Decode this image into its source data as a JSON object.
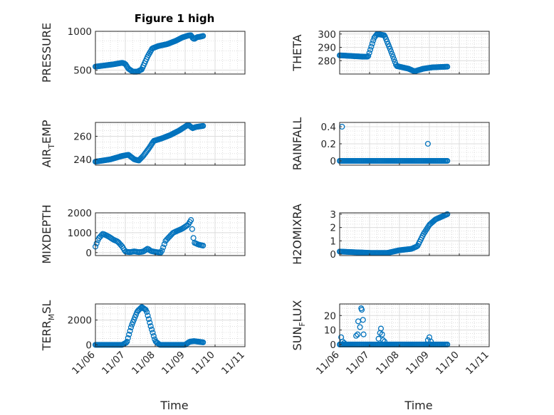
{
  "figure": {
    "title": "Figure 1 high",
    "xlabel": "Time",
    "x_tick_labels": [
      "11/06",
      "11/07",
      "11/08",
      "11/09",
      "11/10",
      "11/11"
    ],
    "marker_color": "#0072bd"
  },
  "chart_data": [
    {
      "type": "scatter",
      "ylabel": "PRESSURE",
      "xlim": [
        0,
        5
      ],
      "ylim": [
        450,
        1000
      ],
      "yticks": [
        500,
        1000
      ],
      "x_tick_labels": [
        "11/06",
        "11/07",
        "11/08",
        "11/09",
        "11/10",
        "11/11"
      ],
      "keypoints": [
        [
          0,
          545
        ],
        [
          0.3,
          560
        ],
        [
          0.6,
          575
        ],
        [
          0.9,
          595
        ],
        [
          1.0,
          580
        ],
        [
          1.1,
          520
        ],
        [
          1.25,
          480
        ],
        [
          1.4,
          480
        ],
        [
          1.55,
          510
        ],
        [
          1.75,
          680
        ],
        [
          1.9,
          780
        ],
        [
          2.1,
          810
        ],
        [
          2.4,
          835
        ],
        [
          2.7,
          880
        ],
        [
          2.9,
          920
        ],
        [
          3.1,
          945
        ],
        [
          3.2,
          950
        ],
        [
          3.25,
          915
        ],
        [
          3.3,
          900
        ],
        [
          3.4,
          925
        ],
        [
          3.5,
          930
        ],
        [
          3.6,
          940
        ]
      ],
      "n_points": 115,
      "grid": true
    },
    {
      "type": "scatter",
      "ylabel": "THETA",
      "xlim": [
        0,
        5
      ],
      "ylim": [
        270,
        302
      ],
      "yticks": [
        280,
        290,
        300
      ],
      "x_tick_labels": [
        "11/06",
        "11/07",
        "11/08",
        "11/09",
        "11/10",
        "11/11"
      ],
      "keypoints": [
        [
          0,
          284
        ],
        [
          0.4,
          283.5
        ],
        [
          0.8,
          283
        ],
        [
          0.95,
          283
        ],
        [
          1.05,
          290
        ],
        [
          1.15,
          297
        ],
        [
          1.25,
          300
        ],
        [
          1.5,
          299
        ],
        [
          1.7,
          288
        ],
        [
          1.9,
          276
        ],
        [
          2.1,
          275
        ],
        [
          2.3,
          274
        ],
        [
          2.5,
          272
        ],
        [
          2.8,
          274
        ],
        [
          3.1,
          275
        ],
        [
          3.6,
          275.5
        ]
      ],
      "n_points": 110,
      "grid": true
    },
    {
      "type": "scatter",
      "ylabel": "AIR",
      "ylabel_sub": "T",
      "ylabel_tail": "EMP",
      "xlim": [
        0,
        5
      ],
      "ylim": [
        235,
        272
      ],
      "yticks": [
        240,
        260
      ],
      "x_tick_labels": [
        "11/06",
        "11/07",
        "11/08",
        "11/09",
        "11/10",
        "11/11"
      ],
      "keypoints": [
        [
          0,
          238
        ],
        [
          0.5,
          240
        ],
        [
          0.9,
          243
        ],
        [
          1.1,
          244
        ],
        [
          1.3,
          240
        ],
        [
          1.45,
          239
        ],
        [
          1.6,
          243
        ],
        [
          1.8,
          250
        ],
        [
          1.95,
          256
        ],
        [
          2.2,
          258
        ],
        [
          2.5,
          261
        ],
        [
          2.8,
          265
        ],
        [
          3.1,
          270
        ],
        [
          3.25,
          267
        ],
        [
          3.35,
          268
        ],
        [
          3.6,
          269
        ]
      ],
      "n_points": 115,
      "grid": true
    },
    {
      "type": "scatter",
      "ylabel": "RAINFALL",
      "xlim": [
        0,
        5
      ],
      "ylim": [
        -0.05,
        0.45
      ],
      "yticks": [
        0,
        0.2,
        0.4
      ],
      "x_tick_labels": [
        "11/06",
        "11/07",
        "11/08",
        "11/09",
        "11/10",
        "11/11"
      ],
      "keypoints": [
        [
          0,
          0
        ],
        [
          3.6,
          0
        ]
      ],
      "n_points": 100,
      "extra_points": [
        [
          0.08,
          0.4
        ],
        [
          2.95,
          0.2
        ]
      ],
      "grid": true
    },
    {
      "type": "scatter",
      "ylabel": "MIXDEPTH",
      "xlim": [
        0,
        5
      ],
      "ylim": [
        -150,
        2000
      ],
      "yticks": [
        0,
        1000,
        2000
      ],
      "x_tick_labels": [
        "11/06",
        "11/07",
        "11/08",
        "11/09",
        "11/10",
        "11/11"
      ],
      "keypoints": [
        [
          0,
          300
        ],
        [
          0.1,
          700
        ],
        [
          0.25,
          950
        ],
        [
          0.45,
          800
        ],
        [
          0.6,
          650
        ],
        [
          0.75,
          550
        ],
        [
          0.9,
          300
        ],
        [
          1.0,
          50
        ],
        [
          1.15,
          20
        ],
        [
          1.3,
          60
        ],
        [
          1.45,
          20
        ],
        [
          1.6,
          50
        ],
        [
          1.75,
          200
        ],
        [
          1.85,
          80
        ],
        [
          2.0,
          30
        ],
        [
          2.2,
          0
        ],
        [
          2.35,
          600
        ],
        [
          2.6,
          1000
        ],
        [
          2.9,
          1200
        ],
        [
          3.1,
          1400
        ],
        [
          3.2,
          1650
        ],
        [
          3.25,
          1000
        ],
        [
          3.3,
          500
        ],
        [
          3.45,
          400
        ],
        [
          3.6,
          350
        ]
      ],
      "n_points": 90,
      "grid": true
    },
    {
      "type": "scatter",
      "ylabel": "H2OMIXRA",
      "xlim": [
        0,
        5
      ],
      "ylim": [
        -0.1,
        3.1
      ],
      "yticks": [
        0,
        1,
        2,
        3
      ],
      "x_tick_labels": [
        "11/06",
        "11/07",
        "11/08",
        "11/09",
        "11/10",
        "11/11"
      ],
      "keypoints": [
        [
          0,
          0.2
        ],
        [
          0.5,
          0.15
        ],
        [
          1.0,
          0.1
        ],
        [
          1.6,
          0.1
        ],
        [
          2.0,
          0.3
        ],
        [
          2.4,
          0.4
        ],
        [
          2.6,
          0.6
        ],
        [
          2.8,
          1.5
        ],
        [
          3.0,
          2.2
        ],
        [
          3.2,
          2.6
        ],
        [
          3.4,
          2.8
        ],
        [
          3.6,
          3.0
        ]
      ],
      "n_points": 110,
      "grid": true
    },
    {
      "type": "scatter",
      "ylabel": "TERR",
      "ylabel_sub": "M",
      "ylabel_tail": "SL",
      "xlim": [
        0,
        5
      ],
      "ylim": [
        -150,
        3300
      ],
      "yticks": [
        0,
        2000
      ],
      "x_tick_labels": [
        "11/06",
        "11/07",
        "11/08",
        "11/09",
        "11/10",
        "11/11"
      ],
      "keypoints": [
        [
          0,
          0
        ],
        [
          0.9,
          0
        ],
        [
          1.05,
          200
        ],
        [
          1.2,
          1500
        ],
        [
          1.4,
          2700
        ],
        [
          1.55,
          3050
        ],
        [
          1.7,
          2800
        ],
        [
          1.85,
          1500
        ],
        [
          2.0,
          300
        ],
        [
          2.15,
          0
        ],
        [
          3.0,
          0
        ],
        [
          3.15,
          250
        ],
        [
          3.3,
          300
        ],
        [
          3.6,
          200
        ]
      ],
      "n_points": 110,
      "grid": true
    },
    {
      "type": "scatter",
      "ylabel": "SUN",
      "ylabel_sub": "F",
      "ylabel_tail": "LUX",
      "xlim": [
        0,
        5
      ],
      "ylim": [
        -1.5,
        28
      ],
      "yticks": [
        0,
        10,
        20
      ],
      "x_tick_labels": [
        "11/06",
        "11/07",
        "11/08",
        "11/09",
        "11/10",
        "11/11"
      ],
      "keypoints": [
        [
          0,
          0
        ],
        [
          3.6,
          0
        ]
      ],
      "n_points": 100,
      "extra_points": [
        [
          0.05,
          5
        ],
        [
          0.1,
          2
        ],
        [
          0.15,
          1
        ],
        [
          0.55,
          6
        ],
        [
          0.6,
          7
        ],
        [
          0.62,
          16
        ],
        [
          0.68,
          12
        ],
        [
          0.72,
          25
        ],
        [
          0.74,
          24
        ],
        [
          0.78,
          17
        ],
        [
          0.8,
          7
        ],
        [
          1.3,
          4
        ],
        [
          1.35,
          8
        ],
        [
          1.38,
          11
        ],
        [
          1.42,
          7
        ],
        [
          1.45,
          3
        ],
        [
          1.5,
          2
        ],
        [
          2.95,
          3
        ],
        [
          3.0,
          5
        ],
        [
          3.05,
          2
        ]
      ],
      "grid": true
    }
  ]
}
